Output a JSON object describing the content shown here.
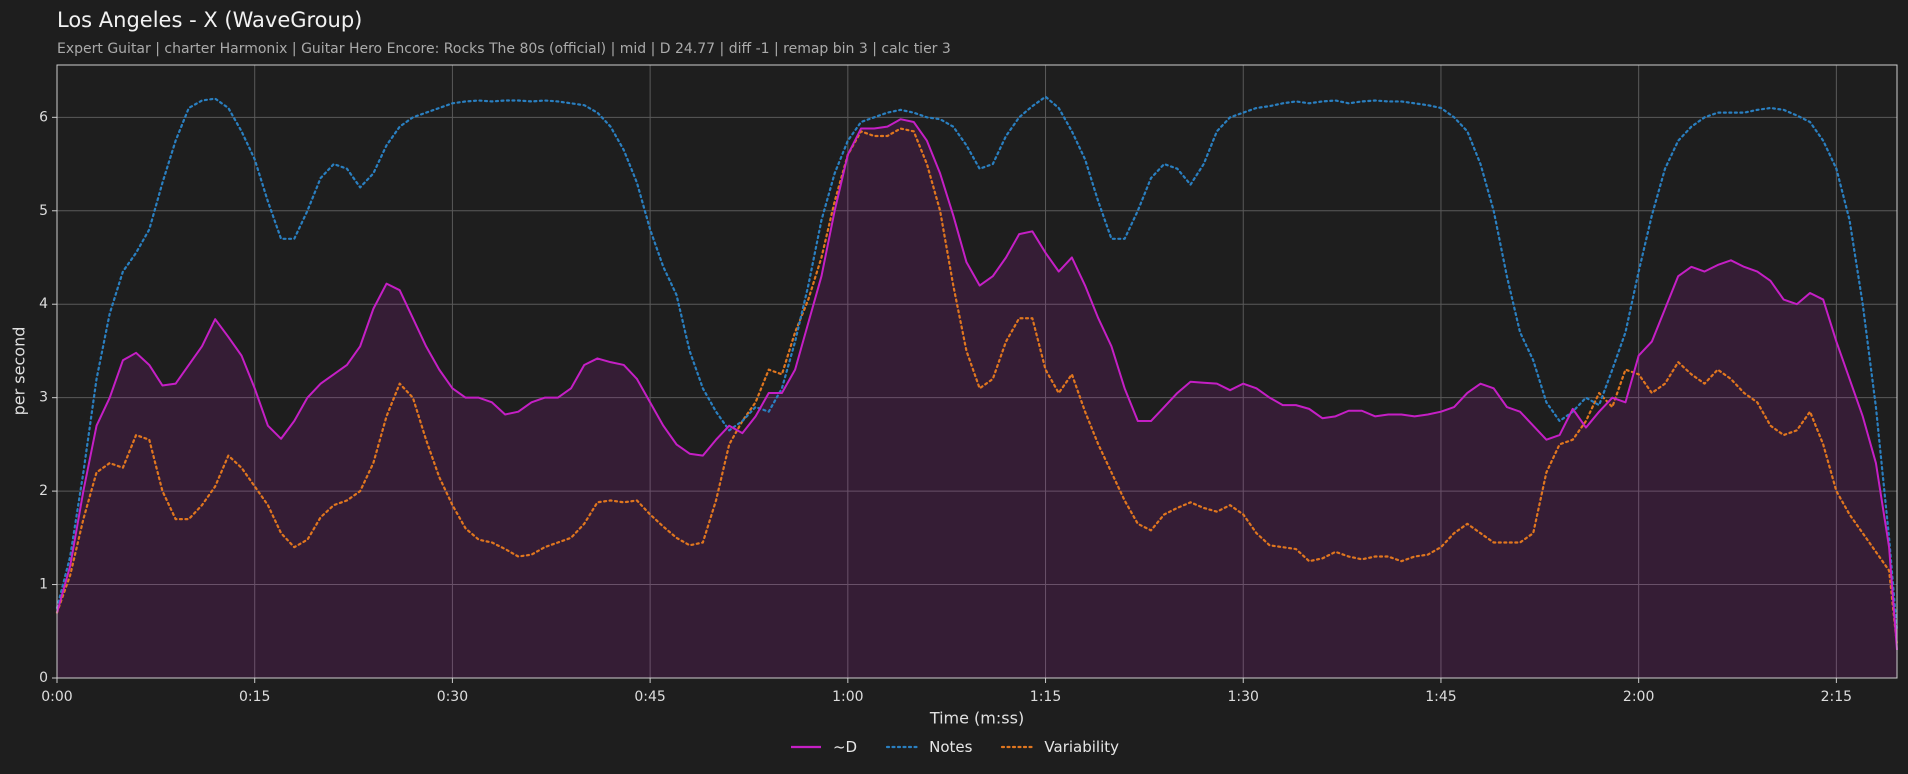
{
  "chart_data": {
    "type": "line",
    "title": "Los Angeles - X (WaveGroup)",
    "subtitle": "Expert Guitar  |  charter Harmonix  |  Guitar Hero Encore: Rocks The 80s (official)  |  mid  |  D 24.77  |  diff -1  |  remap bin 3  |  calc tier 3",
    "xlabel": "Time (m:ss)",
    "ylabel": "per second",
    "legend": "bottom",
    "grid": true,
    "xlim": [
      0,
      139.6
    ],
    "ylim": [
      0,
      6.56
    ],
    "xticks": [
      {
        "value": 0,
        "label": "0:00"
      },
      {
        "value": 15,
        "label": "0:15"
      },
      {
        "value": 30,
        "label": "0:30"
      },
      {
        "value": 45,
        "label": "0:45"
      },
      {
        "value": 60,
        "label": "1:00"
      },
      {
        "value": 75,
        "label": "1:15"
      },
      {
        "value": 90,
        "label": "1:30"
      },
      {
        "value": 105,
        "label": "1:45"
      },
      {
        "value": 120,
        "label": "2:00"
      },
      {
        "value": 135,
        "label": "2:15"
      }
    ],
    "yticks": [
      0,
      1,
      2,
      3,
      4,
      5,
      6
    ],
    "x": [
      0,
      1,
      2,
      3,
      4,
      5,
      6,
      7,
      8,
      9,
      10,
      11,
      12,
      13,
      14,
      15,
      16,
      17,
      18,
      19,
      20,
      21,
      22,
      23,
      24,
      25,
      26,
      27,
      28,
      29,
      30,
      31,
      32,
      33,
      34,
      35,
      36,
      37,
      38,
      39,
      40,
      41,
      42,
      43,
      44,
      45,
      46,
      47,
      48,
      49,
      50,
      51,
      52,
      53,
      54,
      55,
      56,
      57,
      58,
      59,
      60,
      61,
      62,
      63,
      64,
      65,
      66,
      67,
      68,
      69,
      70,
      71,
      72,
      73,
      74,
      75,
      76,
      77,
      78,
      79,
      80,
      81,
      82,
      83,
      84,
      85,
      86,
      87,
      88,
      89,
      90,
      91,
      92,
      93,
      94,
      95,
      96,
      97,
      98,
      99,
      100,
      101,
      102,
      103,
      104,
      105,
      106,
      107,
      108,
      109,
      110,
      111,
      112,
      113,
      114,
      115,
      116,
      117,
      118,
      119,
      120,
      121,
      122,
      123,
      124,
      125,
      126,
      127,
      128,
      129,
      130,
      131,
      132,
      133,
      134,
      135,
      136,
      137,
      138,
      139,
      139.6
    ],
    "series": [
      {
        "name": "~D",
        "color": "#c51fc5",
        "dash": "solid",
        "fill": true,
        "values": [
          0.7,
          1.2,
          2.0,
          2.7,
          3.0,
          3.4,
          3.48,
          3.35,
          3.13,
          3.15,
          3.35,
          3.55,
          3.84,
          3.65,
          3.45,
          3.1,
          2.7,
          2.56,
          2.75,
          3.0,
          3.15,
          3.25,
          3.35,
          3.55,
          3.95,
          4.22,
          4.15,
          3.85,
          3.55,
          3.3,
          3.1,
          3.0,
          3.0,
          2.95,
          2.82,
          2.85,
          2.95,
          3.0,
          3.0,
          3.1,
          3.35,
          3.42,
          3.38,
          3.35,
          3.2,
          2.95,
          2.7,
          2.5,
          2.4,
          2.38,
          2.55,
          2.7,
          2.62,
          2.8,
          3.05,
          3.05,
          3.3,
          3.8,
          4.3,
          5.0,
          5.6,
          5.88,
          5.88,
          5.9,
          5.98,
          5.95,
          5.75,
          5.4,
          4.95,
          4.45,
          4.2,
          4.3,
          4.5,
          4.75,
          4.78,
          4.55,
          4.35,
          4.5,
          4.2,
          3.85,
          3.55,
          3.1,
          2.75,
          2.75,
          2.9,
          3.05,
          3.17,
          3.16,
          3.15,
          3.08,
          3.15,
          3.1,
          3.0,
          2.92,
          2.92,
          2.88,
          2.78,
          2.8,
          2.86,
          2.86,
          2.8,
          2.82,
          2.82,
          2.8,
          2.82,
          2.85,
          2.9,
          3.05,
          3.15,
          3.1,
          2.9,
          2.85,
          2.7,
          2.55,
          2.6,
          2.88,
          2.68,
          2.85,
          3.0,
          2.95,
          3.45,
          3.6,
          3.95,
          4.3,
          4.4,
          4.35,
          4.42,
          4.47,
          4.4,
          4.35,
          4.25,
          4.05,
          4.0,
          4.12,
          4.05,
          3.6,
          3.2,
          2.8,
          2.3,
          1.4,
          0.3
        ]
      },
      {
        "name": "Notes",
        "color": "#2a7fc0",
        "dash": "dotted",
        "fill": false,
        "values": [
          0.75,
          1.3,
          2.2,
          3.2,
          3.9,
          4.35,
          4.55,
          4.8,
          5.3,
          5.75,
          6.1,
          6.18,
          6.2,
          6.1,
          5.85,
          5.55,
          5.1,
          4.7,
          4.7,
          5.0,
          5.35,
          5.5,
          5.45,
          5.25,
          5.4,
          5.7,
          5.9,
          6.0,
          6.05,
          6.1,
          6.15,
          6.17,
          6.18,
          6.17,
          6.18,
          6.18,
          6.17,
          6.18,
          6.17,
          6.15,
          6.13,
          6.05,
          5.9,
          5.65,
          5.3,
          4.8,
          4.4,
          4.1,
          3.5,
          3.1,
          2.85,
          2.65,
          2.75,
          2.9,
          2.85,
          3.1,
          3.6,
          4.2,
          4.9,
          5.4,
          5.75,
          5.95,
          6.0,
          6.05,
          6.08,
          6.05,
          6.0,
          5.98,
          5.9,
          5.7,
          5.45,
          5.5,
          5.8,
          6.0,
          6.12,
          6.22,
          6.1,
          5.85,
          5.55,
          5.1,
          4.7,
          4.7,
          5.0,
          5.35,
          5.5,
          5.45,
          5.28,
          5.5,
          5.85,
          6.0,
          6.05,
          6.1,
          6.12,
          6.15,
          6.17,
          6.15,
          6.17,
          6.18,
          6.15,
          6.17,
          6.18,
          6.17,
          6.17,
          6.15,
          6.13,
          6.1,
          6.0,
          5.85,
          5.5,
          5.0,
          4.3,
          3.7,
          3.4,
          2.95,
          2.75,
          2.85,
          3.0,
          2.92,
          3.3,
          3.7,
          4.35,
          4.95,
          5.45,
          5.75,
          5.9,
          6.0,
          6.05,
          6.05,
          6.05,
          6.08,
          6.1,
          6.08,
          6.02,
          5.95,
          5.75,
          5.45,
          4.9,
          4.0,
          2.9,
          1.5,
          0.5
        ]
      },
      {
        "name": "Variability",
        "color": "#e0761f",
        "dash": "dotted",
        "fill": false,
        "values": [
          0.7,
          1.1,
          1.7,
          2.2,
          2.3,
          2.25,
          2.6,
          2.55,
          2.0,
          1.7,
          1.7,
          1.85,
          2.05,
          2.38,
          2.25,
          2.05,
          1.85,
          1.55,
          1.4,
          1.48,
          1.72,
          1.85,
          1.9,
          2.0,
          2.3,
          2.8,
          3.15,
          3.0,
          2.55,
          2.15,
          1.85,
          1.6,
          1.48,
          1.45,
          1.38,
          1.3,
          1.32,
          1.4,
          1.45,
          1.5,
          1.65,
          1.88,
          1.9,
          1.88,
          1.9,
          1.75,
          1.62,
          1.5,
          1.42,
          1.45,
          1.9,
          2.5,
          2.75,
          2.95,
          3.3,
          3.25,
          3.7,
          4.05,
          4.5,
          5.1,
          5.6,
          5.85,
          5.8,
          5.8,
          5.88,
          5.85,
          5.5,
          5.0,
          4.2,
          3.5,
          3.1,
          3.2,
          3.6,
          3.85,
          3.85,
          3.3,
          3.05,
          3.25,
          2.85,
          2.5,
          2.2,
          1.9,
          1.65,
          1.58,
          1.75,
          1.82,
          1.88,
          1.82,
          1.78,
          1.85,
          1.75,
          1.55,
          1.42,
          1.4,
          1.38,
          1.25,
          1.28,
          1.35,
          1.3,
          1.27,
          1.3,
          1.3,
          1.25,
          1.3,
          1.32,
          1.4,
          1.55,
          1.65,
          1.55,
          1.45,
          1.45,
          1.45,
          1.55,
          2.2,
          2.5,
          2.55,
          2.75,
          3.05,
          2.9,
          3.3,
          3.25,
          3.05,
          3.15,
          3.38,
          3.25,
          3.15,
          3.3,
          3.2,
          3.05,
          2.95,
          2.7,
          2.6,
          2.65,
          2.85,
          2.5,
          2.0,
          1.75,
          1.55,
          1.35,
          1.15,
          0.35
        ]
      }
    ]
  }
}
